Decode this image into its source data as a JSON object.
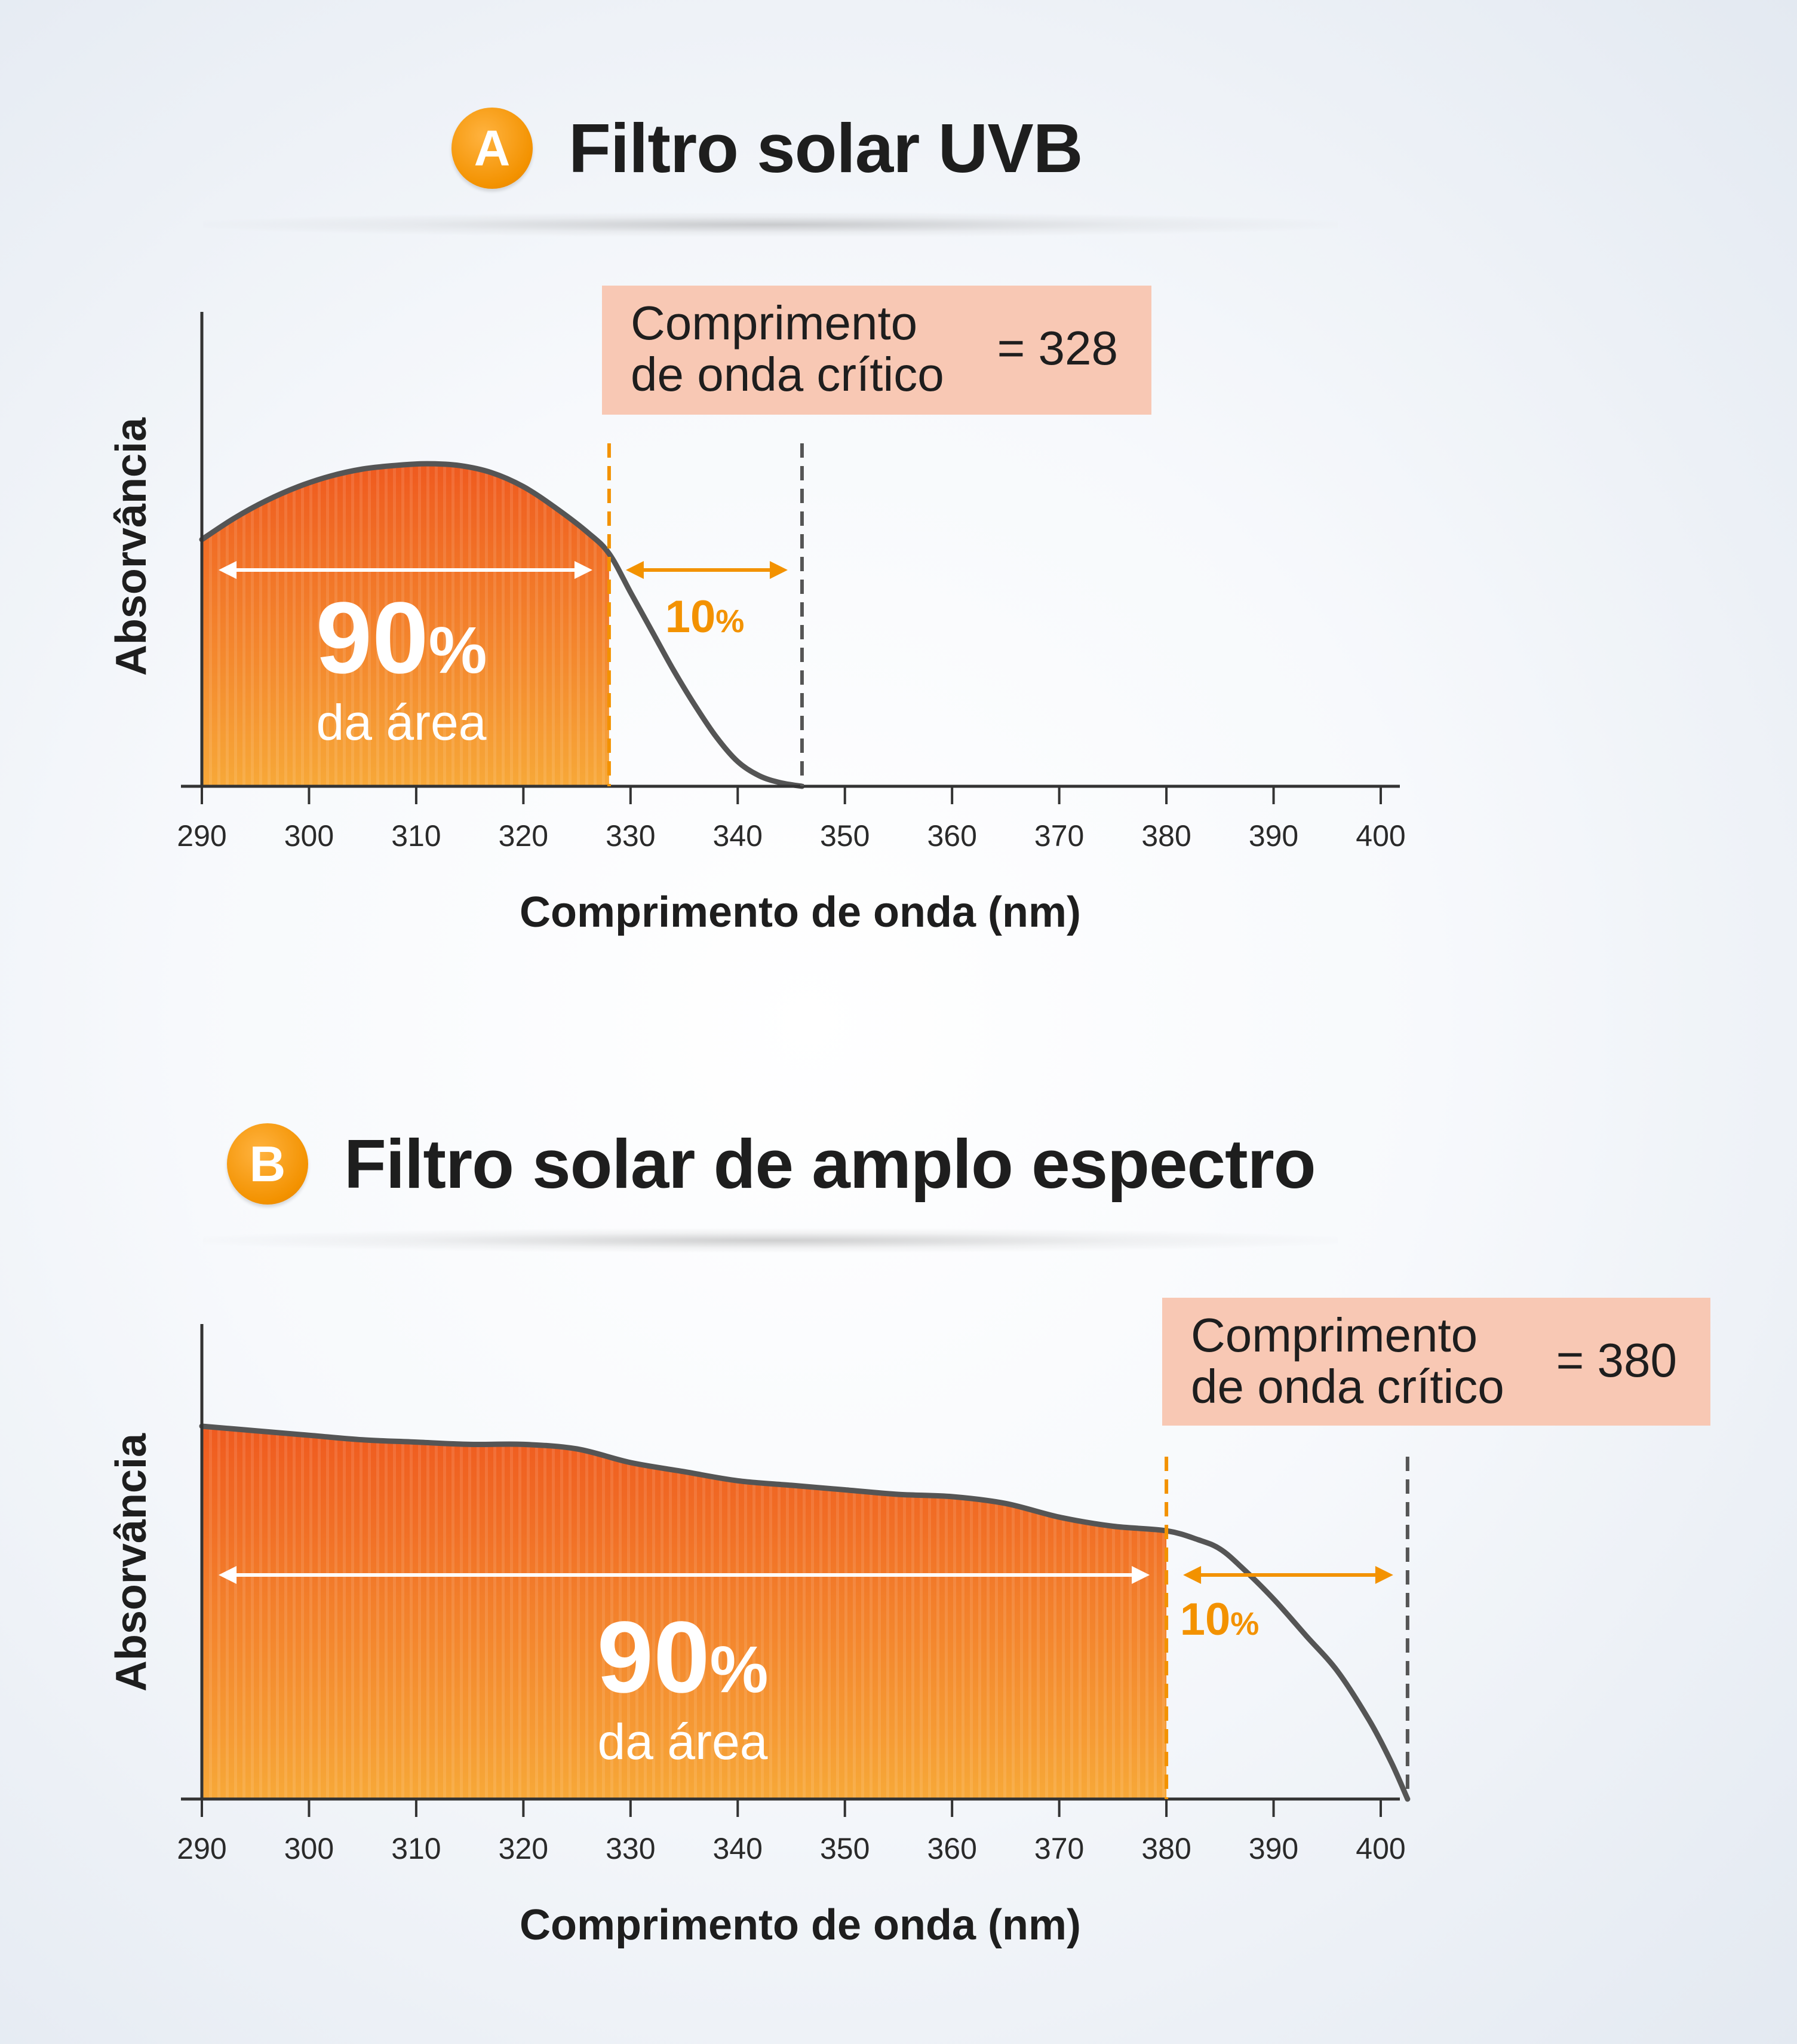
{
  "panels": [
    {
      "badge": "A",
      "title": "Filtro solar UVB",
      "annotation_line1": "Comprimento",
      "annotation_line2": "de onda crítico",
      "annotation_value": "= 328",
      "big_percent": "90",
      "percent_sign": "%",
      "area_label": "da área",
      "small_percent": "10",
      "small_percent_sign": "%"
    },
    {
      "badge": "B",
      "title": "Filtro solar de amplo espectro",
      "annotation_line1": "Comprimento",
      "annotation_line2": "de onda crítico",
      "annotation_value": "= 380",
      "big_percent": "90",
      "percent_sign": "%",
      "area_label": "da área",
      "small_percent": "10",
      "small_percent_sign": "%"
    }
  ],
  "colors": {
    "fill_top": "#ef5a1f",
    "fill_bottom": "#f7a838",
    "curve": "#555555",
    "accent": "#f39200",
    "callout_bg": "#f8c8b4",
    "axis": "#333333"
  },
  "chart_data": [
    {
      "type": "area",
      "title": "Filtro solar UVB",
      "xlabel": "Comprimento de onda (nm)",
      "ylabel": "Absorvância",
      "xlim": [
        290,
        401
      ],
      "xticks": [
        290,
        300,
        310,
        320,
        330,
        340,
        350,
        360,
        370,
        380,
        390,
        400
      ],
      "ylim": [
        0,
        1
      ],
      "y_tick_labels": false,
      "critical_wavelength": 328,
      "end_wavelength": 346,
      "filled_until": 328,
      "x": [
        290,
        293,
        296,
        299,
        302,
        305,
        308,
        311,
        314,
        317,
        320,
        323,
        326,
        328,
        330,
        332,
        334,
        336,
        338,
        340,
        342,
        344,
        346
      ],
      "y": [
        0.7,
        0.76,
        0.81,
        0.85,
        0.88,
        0.9,
        0.91,
        0.915,
        0.91,
        0.89,
        0.85,
        0.79,
        0.72,
        0.66,
        0.55,
        0.44,
        0.33,
        0.23,
        0.14,
        0.07,
        0.03,
        0.01,
        0.0
      ],
      "shares": [
        {
          "label": "90%",
          "range": [
            290,
            328
          ]
        },
        {
          "label": "10%",
          "range": [
            328,
            346
          ]
        }
      ]
    },
    {
      "type": "area",
      "title": "Filtro solar de amplo espectro",
      "xlabel": "Comprimento de onda (nm)",
      "ylabel": "Absorvância",
      "xlim": [
        290,
        401
      ],
      "xticks": [
        290,
        300,
        310,
        320,
        330,
        340,
        350,
        360,
        370,
        380,
        390,
        400
      ],
      "ylim": [
        0,
        1
      ],
      "y_tick_labels": false,
      "critical_wavelength": 380,
      "end_wavelength": 402.5,
      "filled_until": 380,
      "x": [
        290,
        295,
        300,
        305,
        310,
        315,
        320,
        325,
        330,
        335,
        340,
        345,
        350,
        355,
        360,
        365,
        370,
        375,
        380,
        383,
        385,
        387,
        390,
        393,
        396,
        399,
        401,
        402.5
      ],
      "y": [
        0.82,
        0.81,
        0.8,
        0.79,
        0.785,
        0.78,
        0.78,
        0.77,
        0.74,
        0.72,
        0.7,
        0.69,
        0.68,
        0.67,
        0.665,
        0.65,
        0.62,
        0.6,
        0.59,
        0.57,
        0.55,
        0.51,
        0.44,
        0.36,
        0.28,
        0.17,
        0.08,
        0.0
      ],
      "shares": [
        {
          "label": "90%",
          "range": [
            290,
            380
          ]
        },
        {
          "label": "10%",
          "range": [
            380,
            402.5
          ]
        }
      ]
    }
  ]
}
